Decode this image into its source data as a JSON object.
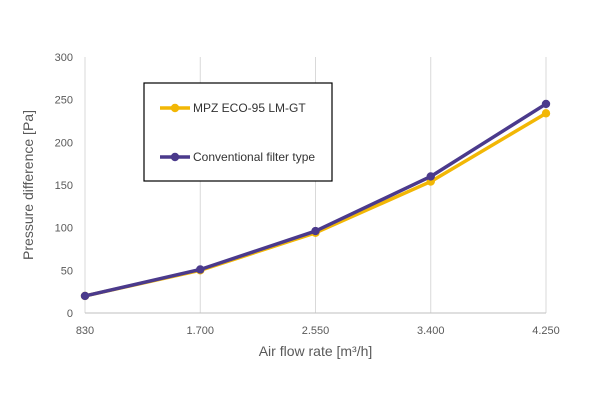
{
  "chart_data": {
    "type": "line",
    "title": "",
    "xlabel": "Air flow rate [m³/h]",
    "ylabel": "Pressure difference [Pa]",
    "categories": [
      "830",
      "1.700",
      "2.550",
      "3.400",
      "4.250"
    ],
    "ylim": [
      0,
      300
    ],
    "yticks": [
      "0",
      "50",
      "100",
      "150",
      "200",
      "250",
      "300"
    ],
    "grid": "vertical",
    "legend_position": "top-left inside plot",
    "series": [
      {
        "name": "MPZ ECO-95 LM-GT",
        "color": "#F2B705",
        "values": [
          20,
          50,
          94,
          154,
          234
        ]
      },
      {
        "name": "Conventional filter type",
        "color": "#4B3A8C",
        "values": [
          20,
          51,
          96,
          160,
          245
        ]
      }
    ]
  }
}
